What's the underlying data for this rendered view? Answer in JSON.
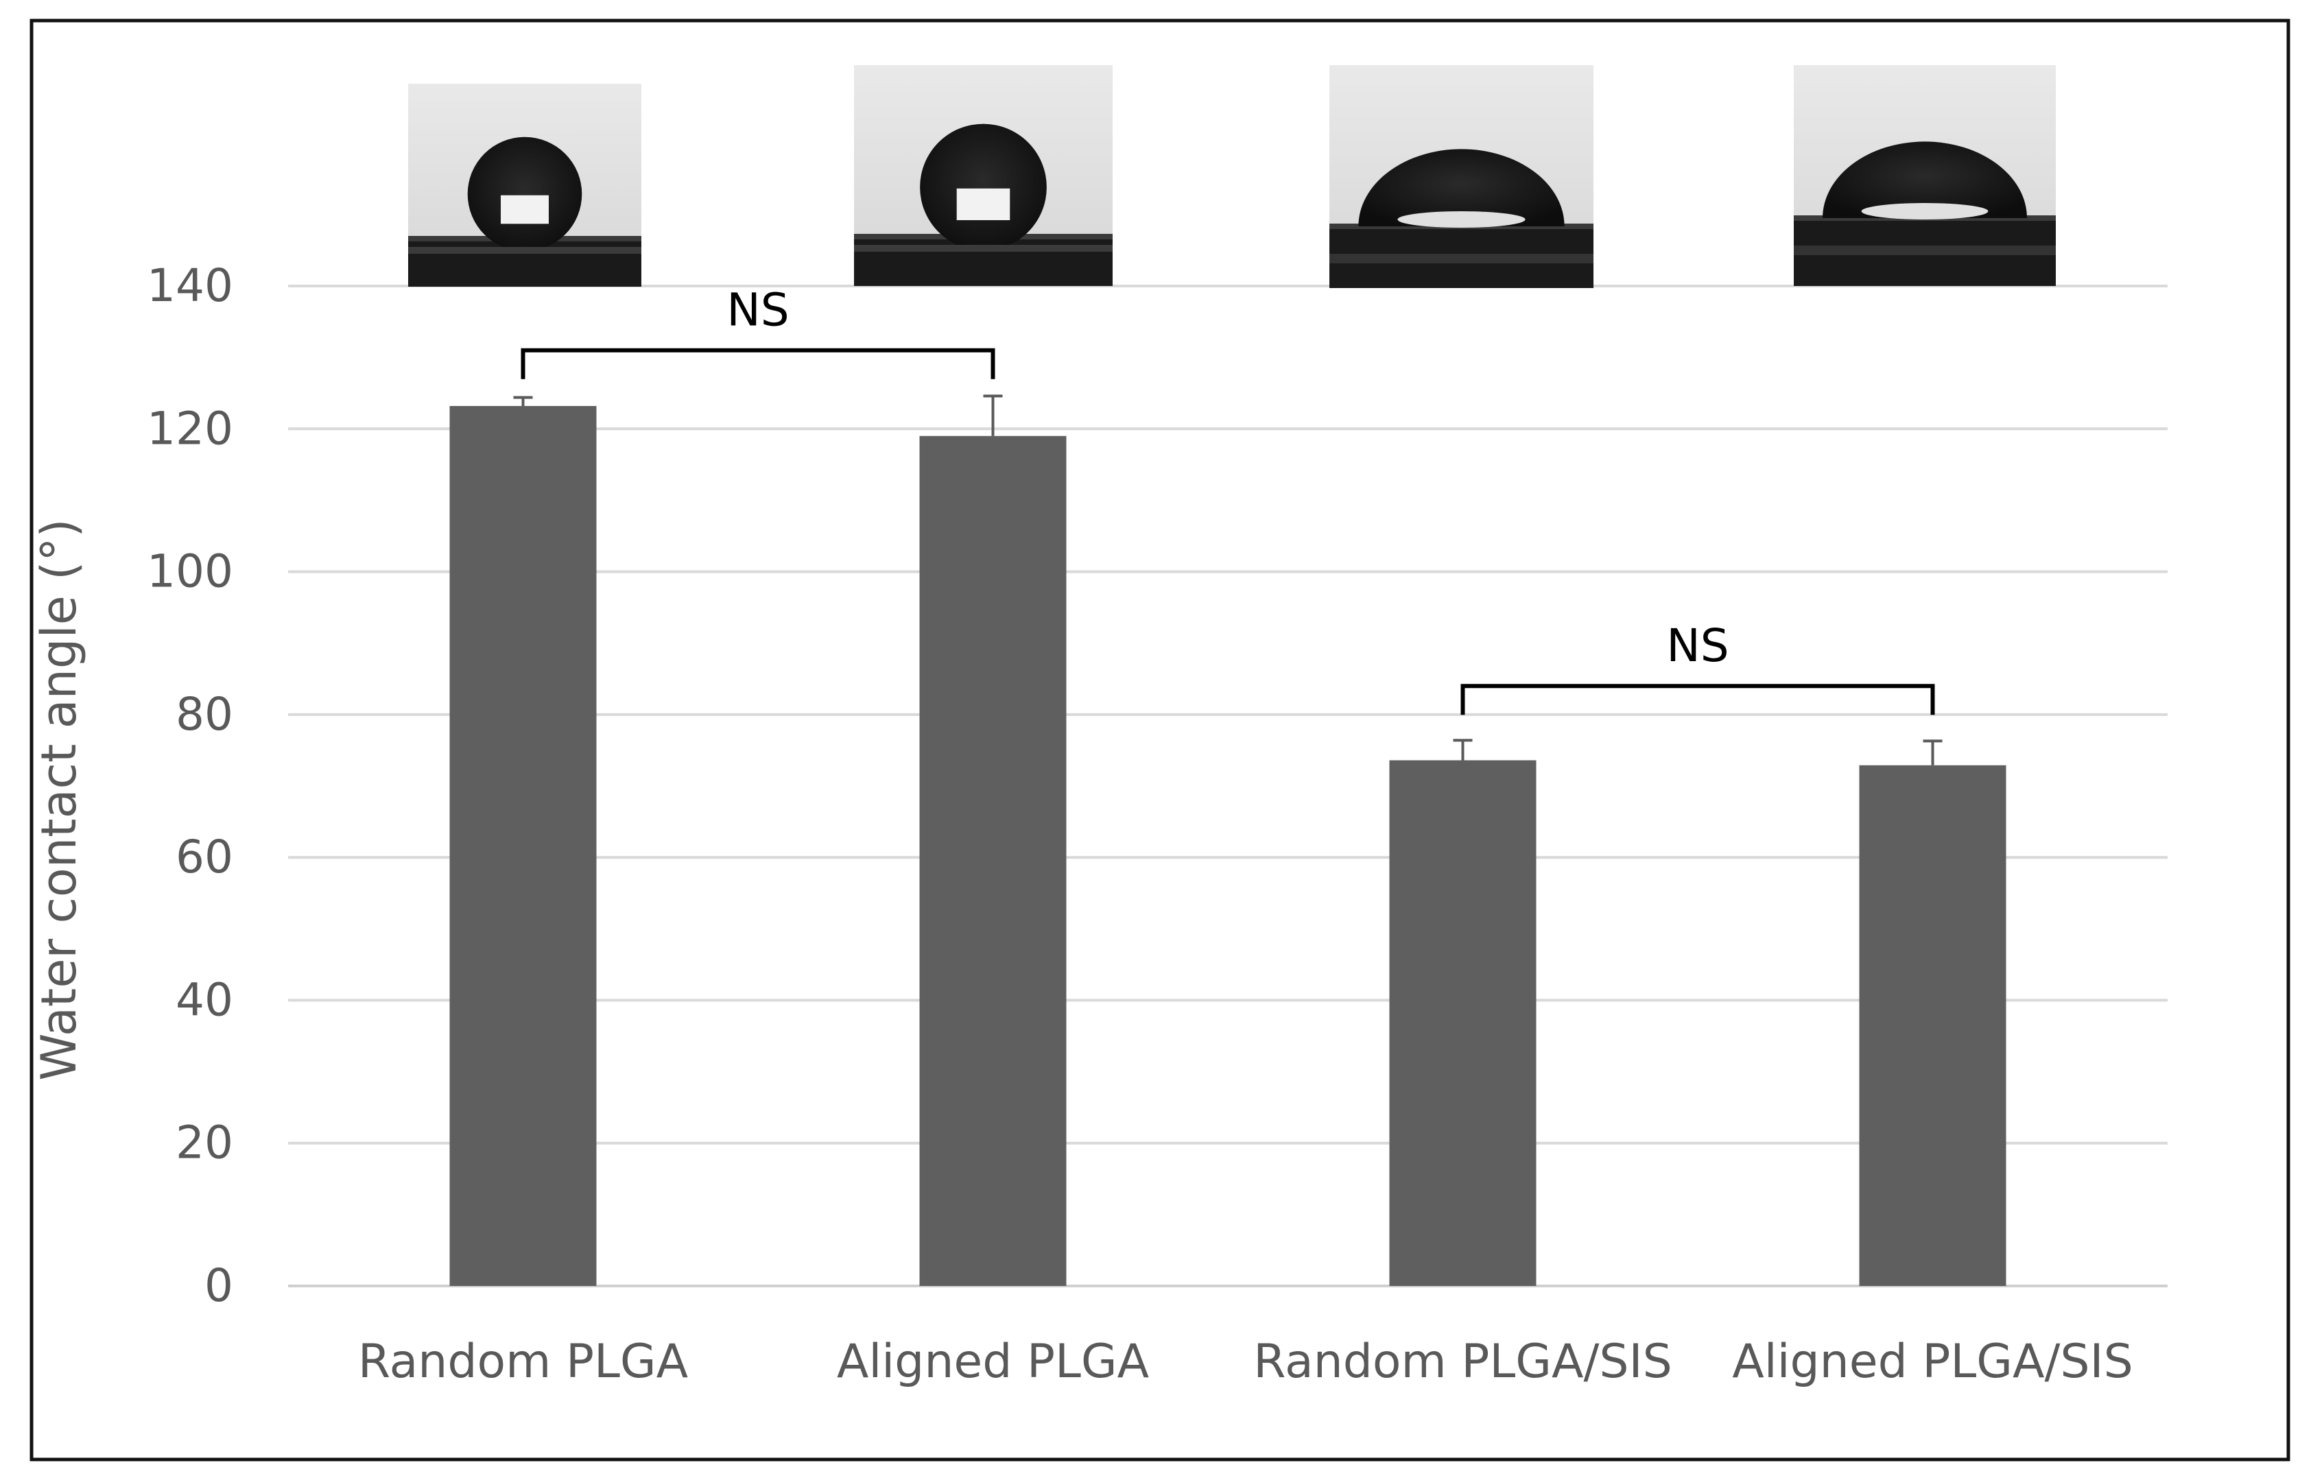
{
  "chart_data": {
    "type": "bar",
    "title": "",
    "xlabel": "",
    "ylabel": "Water contact angle (°)",
    "ylim": [
      0,
      140
    ],
    "yticks": [
      0,
      20,
      40,
      60,
      80,
      100,
      120,
      140
    ],
    "grid": true,
    "legend": "none",
    "categories": [
      "Random PLGA",
      "Aligned PLGA",
      "Random PLGA/SIS",
      "Aligned PLGA/SIS"
    ],
    "values": [
      123.2,
      119.0,
      73.6,
      72.9
    ],
    "error": [
      1.2,
      5.6,
      2.8,
      3.4
    ],
    "bar_color": "#5f5f5f",
    "annotations": [
      {
        "label": "NS",
        "from": 0,
        "to": 1,
        "level": 131
      },
      {
        "label": "NS",
        "from": 2,
        "to": 3,
        "level": 84
      }
    ],
    "insets": [
      {
        "name": "droplet-random-plga",
        "shape": "high-contact-angle droplet"
      },
      {
        "name": "droplet-aligned-plga",
        "shape": "high-contact-angle droplet"
      },
      {
        "name": "droplet-random-plga-sis",
        "shape": "low-contact-angle droplet"
      },
      {
        "name": "droplet-aligned-plga-sis",
        "shape": "low-contact-angle droplet"
      }
    ]
  }
}
